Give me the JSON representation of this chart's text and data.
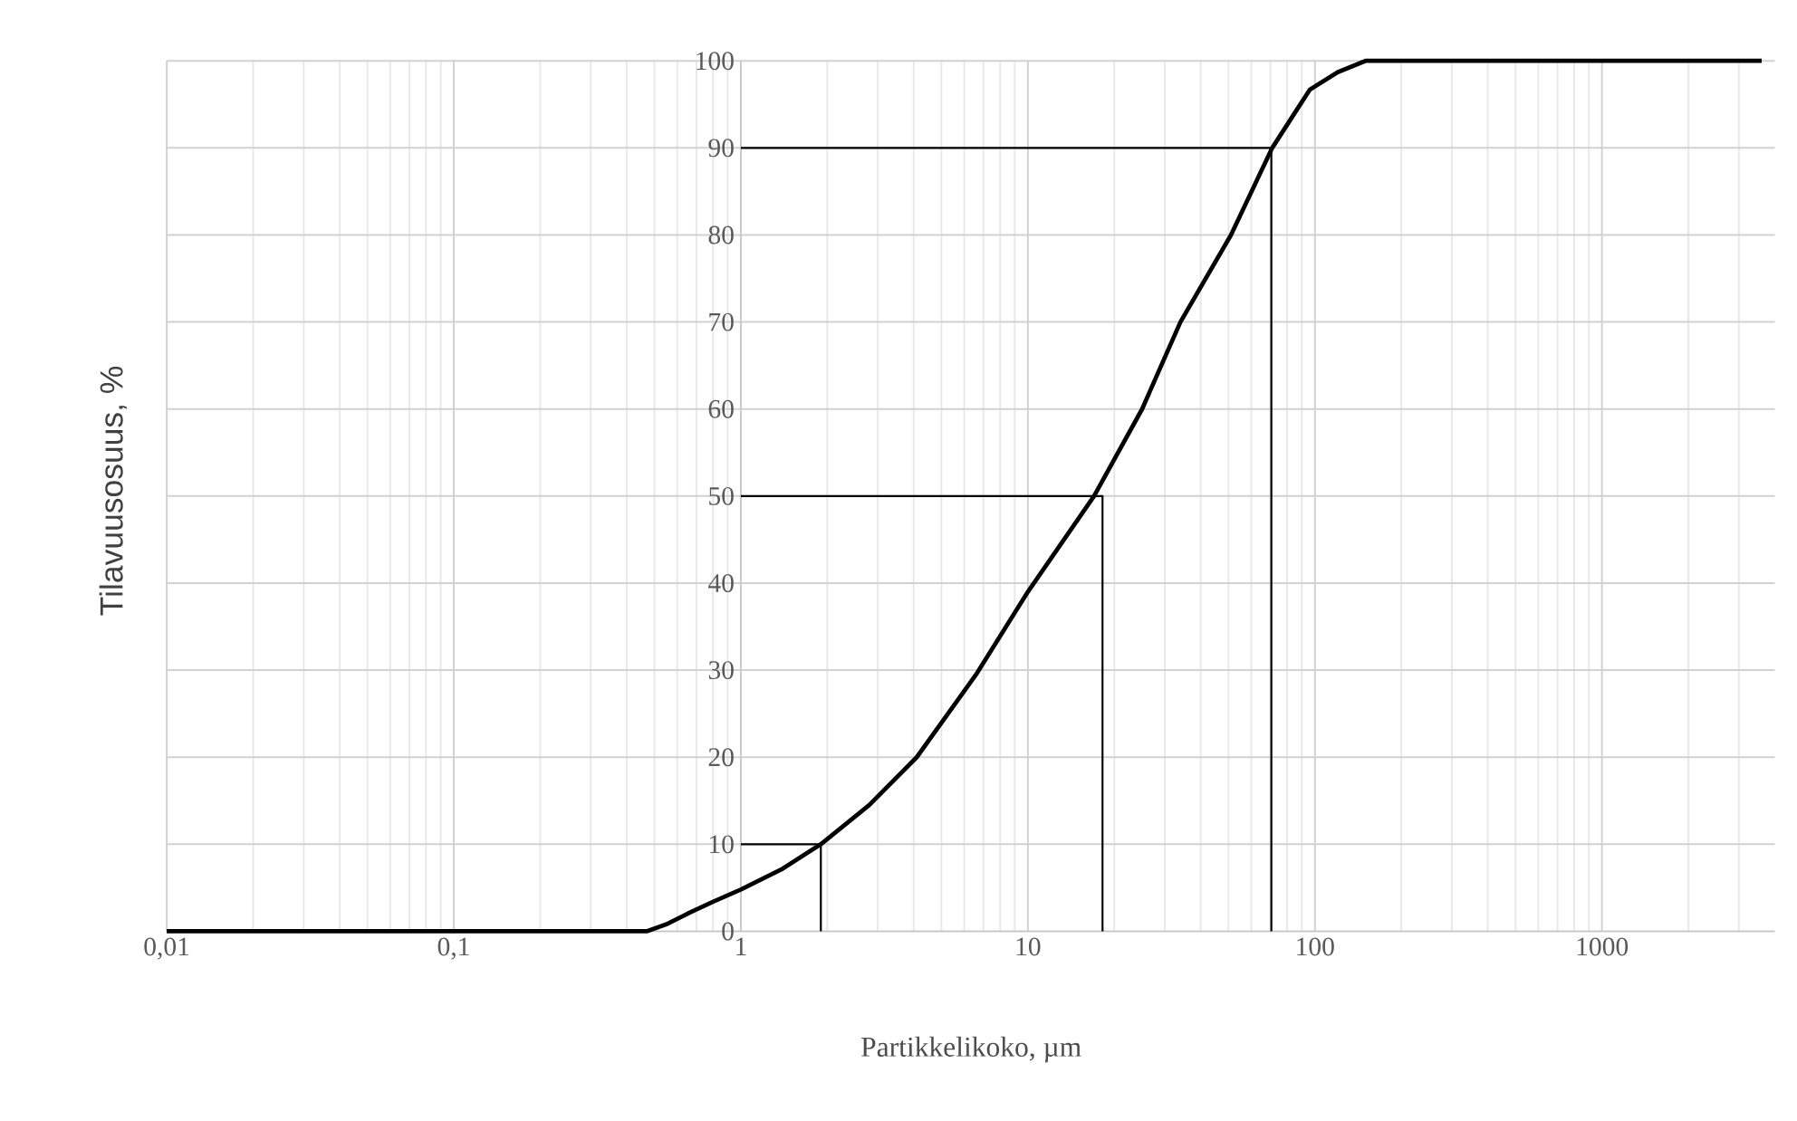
{
  "chart_data": {
    "type": "line",
    "xlabel": "Partikkelikoko,  µm",
    "ylabel": "Tilavuusosuus, %",
    "log": "x",
    "grid": true,
    "marker": "none",
    "line_style": "solid",
    "xlim": [
      0.01,
      4000
    ],
    "ylim": [
      0,
      100
    ],
    "xticks": [
      {
        "value": 0.01,
        "label": "0,01"
      },
      {
        "value": 0.1,
        "label": "0,1"
      },
      1,
      10,
      100,
      1000
    ],
    "yticks": [
      0,
      10,
      20,
      30,
      40,
      50,
      60,
      70,
      80,
      90,
      100
    ],
    "series": [
      {
        "color": "#000000",
        "x": [
          0.01,
          0.4,
          0.47,
          0.55,
          0.65,
          0.8,
          1,
          1.4,
          1.9,
          2.8,
          4.1,
          6.6,
          10,
          17,
          25,
          34,
          51,
          71,
          85,
          96,
          120,
          150,
          3600
        ],
        "values": [
          0,
          0,
          0,
          0.8,
          2,
          3.4,
          4.8,
          7.2,
          10,
          14.5,
          20,
          29.5,
          39,
          50,
          60,
          70,
          80,
          90,
          94,
          96.7,
          98.7,
          100,
          100
        ]
      },
      {
        "color": "#000000",
        "x": [
          1,
          1.9,
          1.9
        ],
        "values": [
          10,
          10,
          0
        ]
      },
      {
        "color": "#000000",
        "x": [
          1,
          18.2,
          18.2
        ],
        "values": [
          50,
          50,
          0
        ]
      },
      {
        "color": "#000000",
        "x": [
          1,
          70.5,
          70.5
        ],
        "values": [
          90,
          90,
          0
        ]
      }
    ]
  }
}
